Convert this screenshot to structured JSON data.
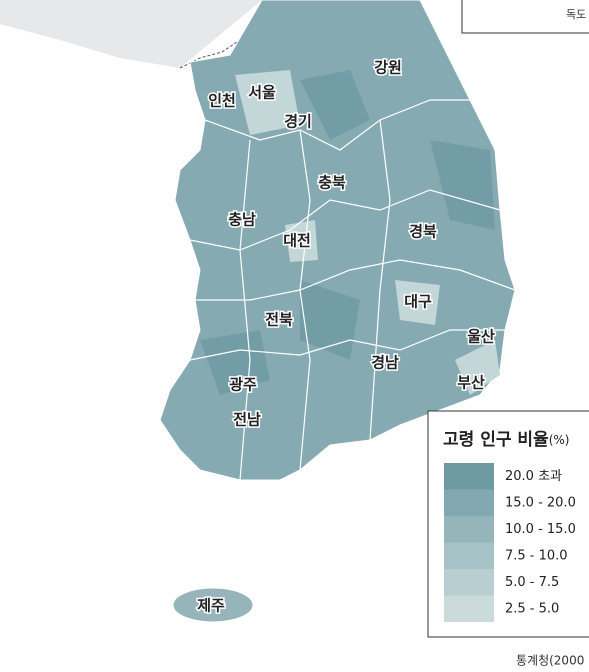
{
  "regions": [
    "강원",
    "인천",
    "서울",
    "경기",
    "충북",
    "충남",
    "대전",
    "경북",
    "대구",
    "전북",
    "울산",
    "경남",
    "광주",
    "부산",
    "전남",
    "제주"
  ],
  "inset": {
    "label": "독도"
  },
  "legend": {
    "title": "고령 인구 비율",
    "unit": "(%)",
    "items": [
      {
        "label": "20.0 초과",
        "color": "#6e9aa3"
      },
      {
        "label": "15.0 - 20.0",
        "color": "#82a9b1"
      },
      {
        "label": "10.0 - 15.0",
        "color": "#95b5bb"
      },
      {
        "label": "7.5 - 10.0",
        "color": "#a7c2c6"
      },
      {
        "label": "5.0 - 7.5",
        "color": "#b9ced1"
      },
      {
        "label": "2.5 - 5.0",
        "color": "#cbdbdc"
      }
    ]
  },
  "source": "통계청(2000"
}
